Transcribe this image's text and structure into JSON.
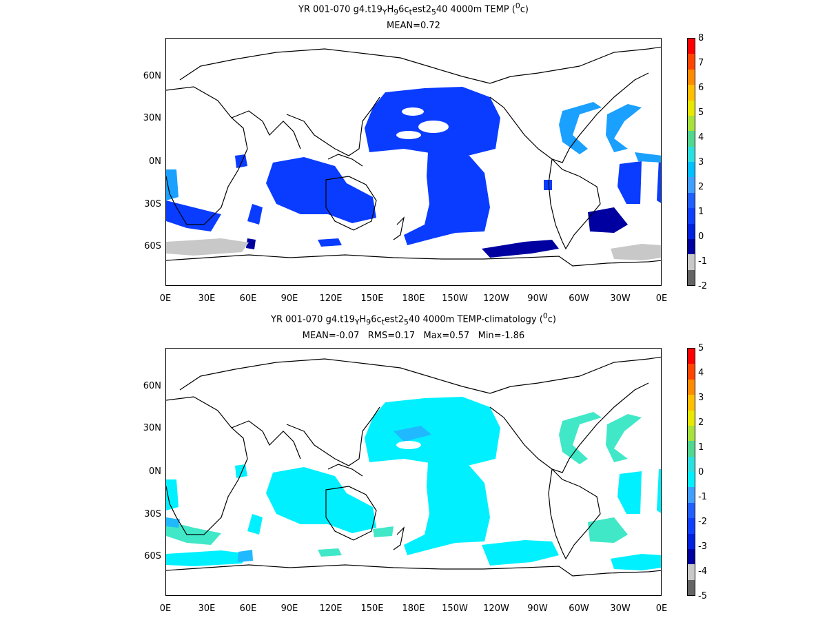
{
  "panel1": {
    "title_parts": [
      "YR 001-070 g4.t19",
      "Y",
      "H",
      "9",
      "6c",
      "t",
      "est2",
      "5",
      "40 4000m TEMP (",
      "0",
      "c)"
    ],
    "stats": "MEAN=0.72",
    "y_labels": [
      "60N",
      "30N",
      "0N",
      "30S",
      "60S"
    ],
    "x_labels": [
      "0E",
      "30E",
      "60E",
      "90E",
      "120E",
      "150E",
      "180E",
      "150W",
      "120W",
      "90W",
      "60W",
      "30W",
      "0E"
    ],
    "colorbar_labels": [
      "8",
      "7",
      "6",
      "5",
      "4",
      "3",
      "2",
      "1",
      "0",
      "-1",
      "-2"
    ],
    "colorbar_colors": [
      "#ff0000",
      "#ff4500",
      "#ff8c00",
      "#ffc000",
      "#e8e800",
      "#a8e23c",
      "#50d890",
      "#2de0e0",
      "#00c0ff",
      "#40a0ff",
      "#2060ff",
      "#1040ff",
      "#0020e0",
      "#0000a0",
      "#c8c8c8",
      "#646464"
    ]
  },
  "panel2": {
    "title_parts": [
      "YR 001-070 g4.t19",
      "Y",
      "H",
      "9",
      "6c",
      "t",
      "est2",
      "5",
      "40 4000m TEMP-climatology (",
      "0",
      "c)"
    ],
    "stats": "MEAN=-0.07   RMS=0.17   Max=0.57   Min=-1.86",
    "y_labels": [
      "60N",
      "30N",
      "0N",
      "30S",
      "60S"
    ],
    "x_labels": [
      "0E",
      "30E",
      "60E",
      "90E",
      "120E",
      "150E",
      "180E",
      "150W",
      "120W",
      "90W",
      "60W",
      "30W",
      "0E"
    ],
    "colorbar_labels": [
      "5",
      "4",
      "3",
      "2",
      "1",
      "0",
      "-1",
      "-2",
      "-3",
      "-4",
      "-5"
    ],
    "colorbar_colors": [
      "#ff0000",
      "#ff4500",
      "#ff8c00",
      "#ffc000",
      "#e8e800",
      "#a8e23c",
      "#50d890",
      "#2de0e0",
      "#00f0ff",
      "#40a0ff",
      "#2060ff",
      "#1040ff",
      "#0020e0",
      "#0000a0",
      "#c8c8c8",
      "#646464"
    ]
  },
  "colors": {
    "panel1_deep": "#0a3cff",
    "panel1_light": "#1aa0ff",
    "panel1_dark": "#0000a0",
    "panel1_gray": "#c8c8c8",
    "panel2_cyan": "#00f0ff",
    "panel2_teal": "#40e8c8",
    "panel2_blue": "#20b8ff"
  }
}
